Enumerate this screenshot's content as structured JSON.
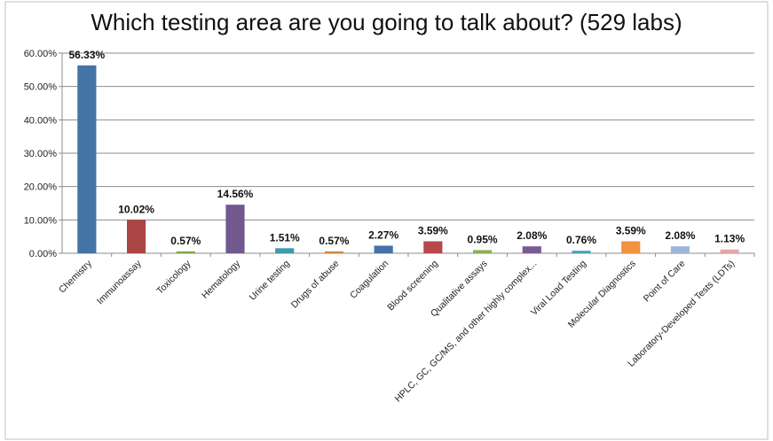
{
  "chart_data": {
    "type": "bar",
    "title": "Which testing area are you going to talk about? (529 labs)",
    "xlabel": "",
    "ylabel": "",
    "ylim": [
      0,
      60
    ],
    "y_ticks": [
      "0.00%",
      "10.00%",
      "20.00%",
      "30.00%",
      "40.00%",
      "50.00%",
      "60.00%"
    ],
    "grid": true,
    "legend": "none",
    "categories": [
      "Chemistry",
      "Immunoassay",
      "Toxicology",
      "Hematology",
      "Urine testing",
      "Drugs of abuse",
      "Coagulation",
      "Blood screening",
      "Qualitative assays",
      "HPLC, GC, GC/MS, and other highly complex...",
      "Viral Load Testing",
      "Molecular Diagnostics",
      "Point of Care",
      "Laboratory-Developed Tests (LDTs)"
    ],
    "values": [
      56.33,
      10.02,
      0.57,
      14.56,
      1.51,
      0.57,
      2.27,
      3.59,
      0.95,
      2.08,
      0.76,
      3.59,
      2.08,
      1.13
    ],
    "data_labels": [
      "56.33%",
      "10.02%",
      "0.57%",
      "14.56%",
      "1.51%",
      "0.57%",
      "2.27%",
      "3.59%",
      "0.95%",
      "2.08%",
      "0.76%",
      "3.59%",
      "2.08%",
      "1.13%"
    ],
    "colors": [
      "#4573a7",
      "#aa4643",
      "#89a54e",
      "#71588f",
      "#4198af",
      "#db843d",
      "#4572a7",
      "#b5484a",
      "#8bb04f",
      "#7a5a94",
      "#47a3b8",
      "#f0923e",
      "#9db6dc",
      "#e6a6a6"
    ]
  }
}
